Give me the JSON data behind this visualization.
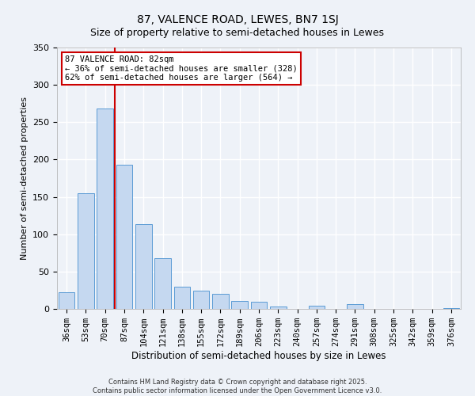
{
  "title": "87, VALENCE ROAD, LEWES, BN7 1SJ",
  "subtitle": "Size of property relative to semi-detached houses in Lewes",
  "xlabel": "Distribution of semi-detached houses by size in Lewes",
  "ylabel": "Number of semi-detached properties",
  "categories": [
    "36sqm",
    "53sqm",
    "70sqm",
    "87sqm",
    "104sqm",
    "121sqm",
    "138sqm",
    "155sqm",
    "172sqm",
    "189sqm",
    "206sqm",
    "223sqm",
    "240sqm",
    "257sqm",
    "274sqm",
    "291sqm",
    "308sqm",
    "325sqm",
    "342sqm",
    "359sqm",
    "376sqm"
  ],
  "values": [
    22,
    155,
    268,
    193,
    113,
    68,
    30,
    24,
    20,
    11,
    10,
    3,
    0,
    4,
    0,
    6,
    0,
    0,
    0,
    0,
    1
  ],
  "bar_color": "#c5d8f0",
  "bar_edge_color": "#5b9bd5",
  "vline_color": "#cc0000",
  "vline_index": 3,
  "annotation_title": "87 VALENCE ROAD: 82sqm",
  "annotation_line1": "← 36% of semi-detached houses are smaller (328)",
  "annotation_line2": "62% of semi-detached houses are larger (564) →",
  "annotation_box_facecolor": "#ffffff",
  "annotation_box_edgecolor": "#cc0000",
  "ylim": [
    0,
    350
  ],
  "yticks": [
    0,
    50,
    100,
    150,
    200,
    250,
    300,
    350
  ],
  "footer_line1": "Contains HM Land Registry data © Crown copyright and database right 2025.",
  "footer_line2": "Contains public sector information licensed under the Open Government Licence v3.0.",
  "bg_color": "#eef2f8",
  "plot_bg_color": "#eef2f8",
  "grid_color": "#ffffff",
  "title_fontsize": 10,
  "subtitle_fontsize": 9,
  "xlabel_fontsize": 8.5,
  "ylabel_fontsize": 8,
  "tick_fontsize": 7.5,
  "annotation_fontsize": 7.5
}
